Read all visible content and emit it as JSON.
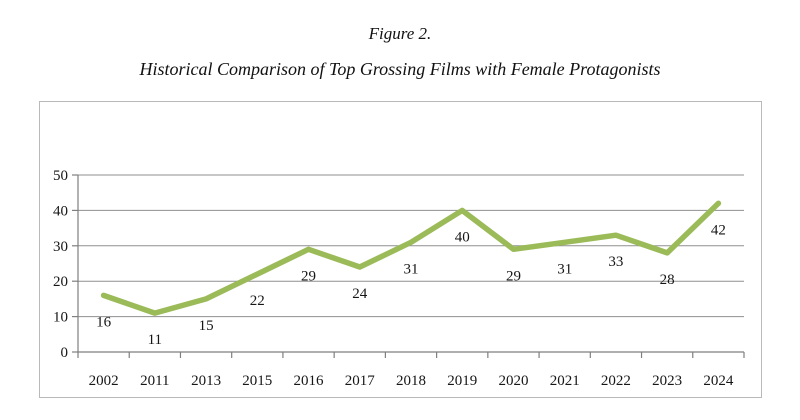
{
  "caption": {
    "figure_label": "Figure 2.",
    "title": "Historical Comparison of Top Grossing Films with Female Protagonists"
  },
  "chart_data": {
    "type": "line",
    "title": "Historical Comparison of Top Grossing Films with Female Protagonists",
    "figure_label": "Figure 2.",
    "categories": [
      "2002",
      "2011",
      "2013",
      "2015",
      "2016",
      "2017",
      "2018",
      "2019",
      "2020",
      "2021",
      "2022",
      "2023",
      "2024"
    ],
    "values": [
      16,
      11,
      15,
      22,
      29,
      24,
      31,
      40,
      29,
      31,
      33,
      28,
      42
    ],
    "xlabel": "",
    "ylabel": "",
    "ylim": [
      0,
      50
    ],
    "yticks": [
      0,
      10,
      20,
      30,
      40,
      50
    ],
    "grid": true,
    "legend": "none",
    "data_labels_position": "below",
    "colors": {
      "line": "#9bbb59",
      "grid": "#8f8f8f",
      "axis": "#7f7f7f",
      "border": "#b9b9b9",
      "text": "#161616"
    }
  }
}
